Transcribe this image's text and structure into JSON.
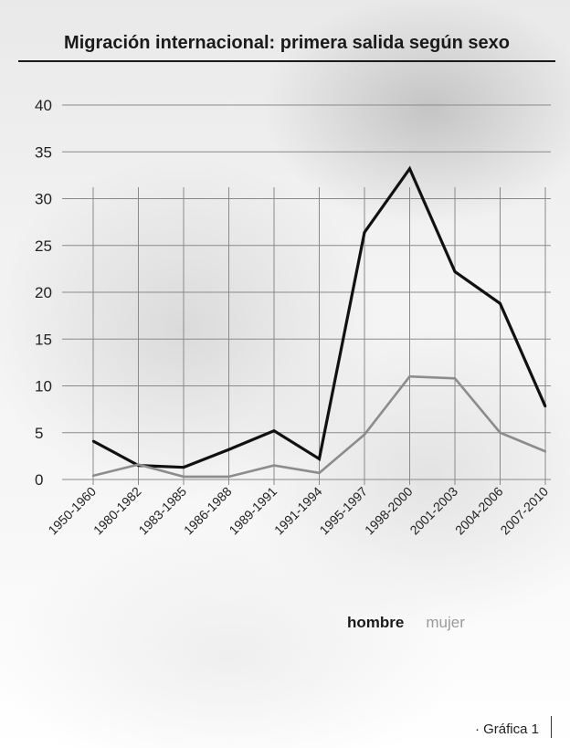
{
  "chart_data": {
    "type": "line",
    "title": "Migración internacional: primera salida según sexo",
    "categories": [
      "1950-1960",
      "1980-1982",
      "1983-1985",
      "1986-1988",
      "1989-1991",
      "1991-1994",
      "1995-1997",
      "1998-2000",
      "2001-2003",
      "2004-2006",
      "2007-2010"
    ],
    "series": [
      {
        "name": "hombre",
        "color": "#111111",
        "values": [
          4.1,
          1.5,
          1.3,
          3.2,
          5.2,
          2.2,
          26.4,
          33.2,
          22.2,
          18.8,
          7.8
        ]
      },
      {
        "name": "mujer",
        "color": "#8c8c8c",
        "values": [
          0.4,
          1.6,
          0.3,
          0.3,
          1.5,
          0.7,
          4.8,
          11.0,
          10.8,
          5.0,
          3.0
        ]
      }
    ],
    "y_ticks": [
      "0",
      "5",
      "10",
      "15",
      "20",
      "25",
      "30",
      "35",
      "40"
    ],
    "ylim": [
      0,
      40
    ],
    "grid": true,
    "legend": "bottom-right"
  },
  "legend": {
    "hombre": "hombre",
    "mujer": "mujer"
  },
  "footer": "· Gráfica 1"
}
